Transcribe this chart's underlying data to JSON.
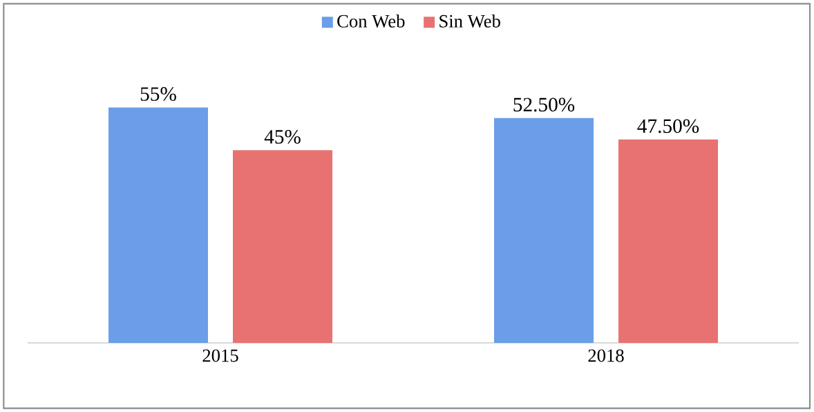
{
  "chart_data": {
    "type": "bar",
    "categories": [
      "2015",
      "2018"
    ],
    "series": [
      {
        "name": "Con Web",
        "color": "#6a9ee8",
        "values": [
          55,
          52.5
        ],
        "value_labels": [
          "55%",
          "52.50%"
        ]
      },
      {
        "name": "Sin Web",
        "color": "#e87272",
        "values": [
          45,
          47.5
        ],
        "value_labels": [
          "45%",
          "47.50%"
        ]
      }
    ],
    "legend": "top"
  }
}
